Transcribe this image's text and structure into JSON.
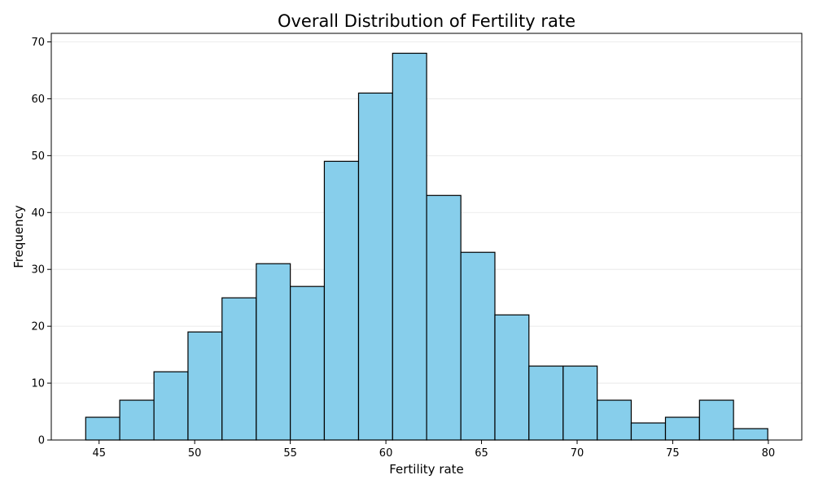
{
  "chart_data": {
    "type": "bar",
    "title": "Overall Distribution of Fertility rate",
    "xlabel": "Fertility rate",
    "ylabel": "Frequency",
    "bin_edges": [
      44.3,
      46.08,
      47.87,
      49.65,
      51.43,
      53.22,
      55.0,
      56.78,
      58.57,
      60.35,
      62.13,
      63.92,
      65.7,
      67.48,
      69.27,
      71.05,
      72.83,
      74.62,
      76.4,
      78.18,
      79.97
    ],
    "values": [
      4,
      7,
      12,
      19,
      25,
      31,
      27,
      49,
      61,
      68,
      43,
      33,
      22,
      13,
      13,
      7,
      3,
      4,
      7,
      2
    ],
    "xlim": [
      42.5,
      81.75
    ],
    "ylim": [
      0,
      71.5
    ],
    "xticks": [
      45,
      50,
      55,
      60,
      65,
      70,
      75,
      80
    ],
    "yticks": [
      0,
      10,
      20,
      30,
      40,
      50,
      60,
      70
    ],
    "grid": {
      "y": true,
      "x": false
    },
    "colors": {
      "bar_fill": "#87ceeb",
      "bar_edge": "#000000",
      "grid": "#e6e6e6"
    }
  }
}
